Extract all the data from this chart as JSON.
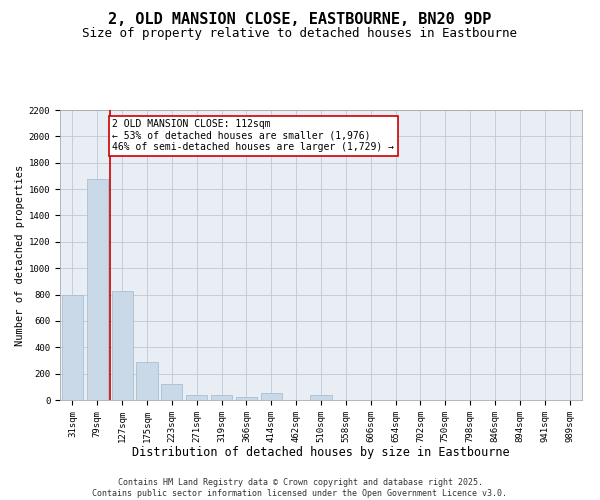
{
  "title1": "2, OLD MANSION CLOSE, EASTBOURNE, BN20 9DP",
  "title2": "Size of property relative to detached houses in Eastbourne",
  "xlabel": "Distribution of detached houses by size in Eastbourne",
  "ylabel": "Number of detached properties",
  "categories": [
    "31sqm",
    "79sqm",
    "127sqm",
    "175sqm",
    "223sqm",
    "271sqm",
    "319sqm",
    "366sqm",
    "414sqm",
    "462sqm",
    "510sqm",
    "558sqm",
    "606sqm",
    "654sqm",
    "702sqm",
    "750sqm",
    "798sqm",
    "846sqm",
    "894sqm",
    "941sqm",
    "989sqm"
  ],
  "values": [
    800,
    1680,
    830,
    285,
    120,
    40,
    40,
    25,
    55,
    0,
    35,
    0,
    0,
    0,
    0,
    0,
    0,
    0,
    0,
    0,
    0
  ],
  "bar_color": "#c9d9e8",
  "bar_edge_color": "#a0b8cc",
  "vline_x_index": 1.5,
  "vline_color": "#cc0000",
  "annotation_text": "2 OLD MANSION CLOSE: 112sqm\n← 53% of detached houses are smaller (1,976)\n46% of semi-detached houses are larger (1,729) →",
  "annotation_box_color": "#cc0000",
  "annotation_text_color": "#000000",
  "ylim": [
    0,
    2200
  ],
  "yticks": [
    0,
    200,
    400,
    600,
    800,
    1000,
    1200,
    1400,
    1600,
    1800,
    2000,
    2200
  ],
  "grid_color": "#c0c8d8",
  "background_color": "#e8eef4",
  "footer_text": "Contains HM Land Registry data © Crown copyright and database right 2025.\nContains public sector information licensed under the Open Government Licence v3.0.",
  "title1_fontsize": 11,
  "title2_fontsize": 9,
  "xlabel_fontsize": 8.5,
  "ylabel_fontsize": 7.5,
  "tick_fontsize": 6.5,
  "annotation_fontsize": 7,
  "footer_fontsize": 6
}
